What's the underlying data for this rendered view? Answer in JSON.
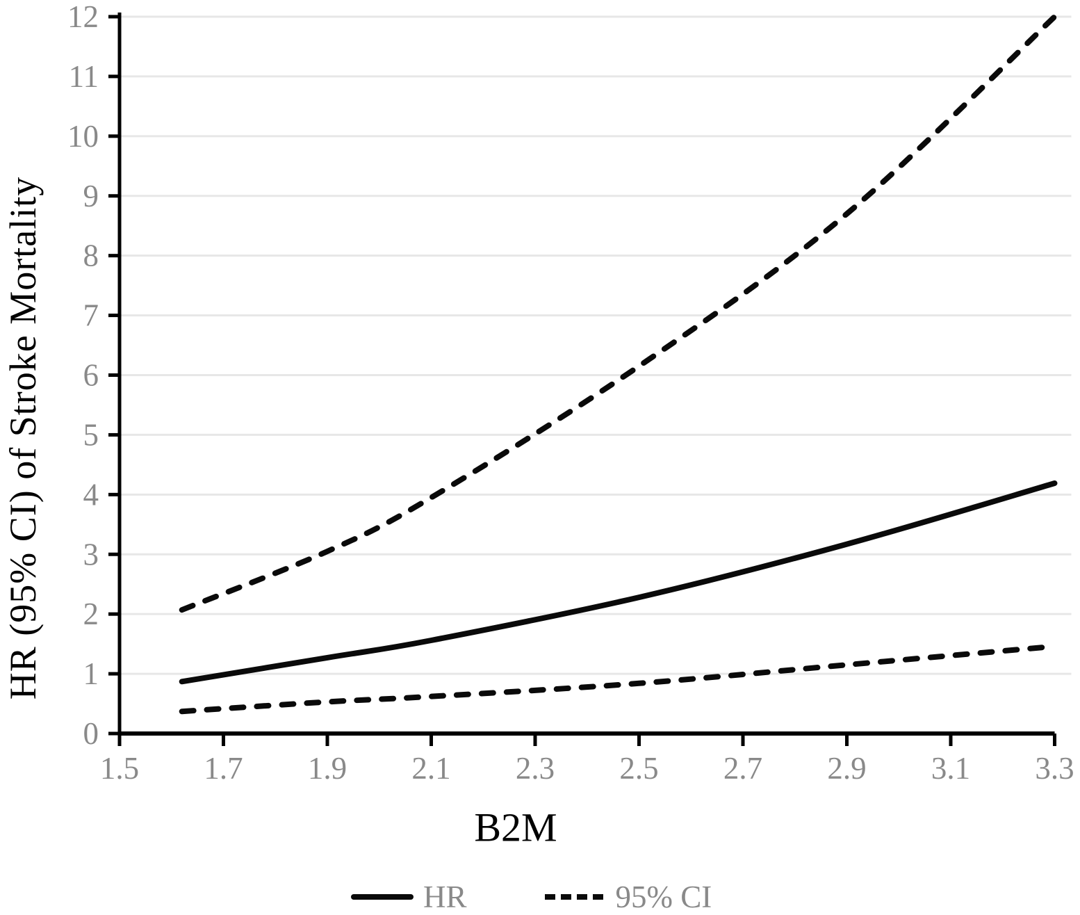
{
  "chart_data": {
    "type": "line",
    "title": "",
    "xlabel": "B2M",
    "ylabel": "HR (95% CI) of Stroke Mortality",
    "xlim": [
      1.5,
      3.3
    ],
    "ylim": [
      0,
      12
    ],
    "x_tick_labels": [
      "1.5",
      "1.7",
      "1.9",
      "2.1",
      "2.3",
      "2.5",
      "2.7",
      "2.9",
      "3.1",
      "3.3"
    ],
    "y_tick_labels": [
      "0",
      "1",
      "2",
      "3",
      "4",
      "5",
      "6",
      "7",
      "8",
      "9",
      "10",
      "11",
      "12"
    ],
    "grid": "horizontal-light-gray",
    "x": [
      1.62,
      1.9,
      2.1,
      2.5,
      2.9,
      3.3
    ],
    "series": [
      {
        "name": "HR",
        "line_style": "solid",
        "values": [
          0.87,
          1.27,
          1.56,
          2.28,
          3.17,
          4.19
        ]
      },
      {
        "name": "95% CI upper",
        "line_style": "dashed",
        "values": [
          2.07,
          3.05,
          3.95,
          6.15,
          8.7,
          12.0
        ]
      },
      {
        "name": "95% CI lower",
        "line_style": "dashed",
        "values": [
          0.37,
          0.53,
          0.62,
          0.84,
          1.15,
          1.46
        ]
      }
    ],
    "legend": {
      "position": "bottom-center",
      "items": [
        {
          "label": "HR",
          "style": "solid"
        },
        {
          "label": "95% CI",
          "style": "dashed"
        }
      ]
    },
    "colors": {
      "series": "#0a0a0a",
      "grid": "#e7e7e7",
      "tick_labels": "#898989",
      "axis": "#000000",
      "axis_titles": "#000000",
      "legend_labels": "#898989"
    }
  }
}
